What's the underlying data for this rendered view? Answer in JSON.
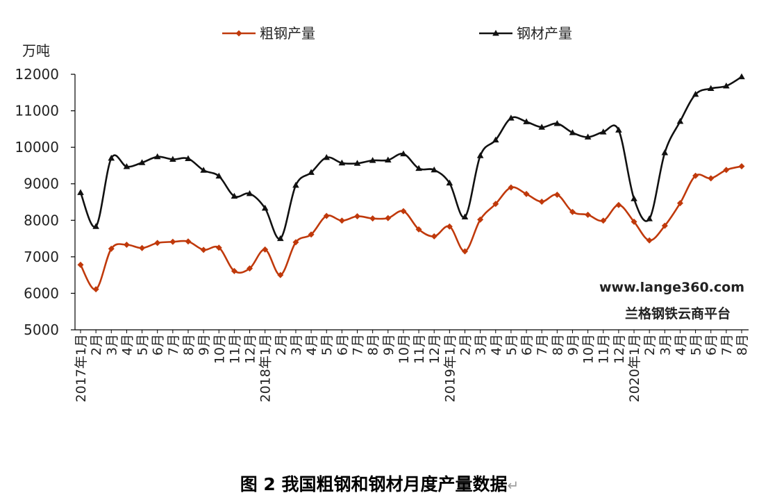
{
  "chart_data": {
    "type": "line",
    "ylabel": "万吨",
    "ylim": [
      5000,
      12000
    ],
    "yticks": [
      5000,
      6000,
      7000,
      8000,
      9000,
      10000,
      11000,
      12000
    ],
    "grid": false,
    "legend_position": "top",
    "categories": [
      "2017年1月",
      "2月",
      "3月",
      "4月",
      "5月",
      "6月",
      "7月",
      "8月",
      "9月",
      "10月",
      "11月",
      "12月",
      "2018年1月",
      "2月",
      "3月",
      "4月",
      "5月",
      "6月",
      "7月",
      "8月",
      "9月",
      "10月",
      "11月",
      "12月",
      "2019年1月",
      "2月",
      "3月",
      "4月",
      "5月",
      "6月",
      "7月",
      "8月",
      "9月",
      "10月",
      "11月",
      "12月",
      "2020年1月",
      "2月",
      "3月",
      "4月",
      "5月",
      "6月",
      "7月",
      "8月"
    ],
    "x_label_groups": [
      {
        "year": "2017年",
        "months": [
          "1月",
          "2月",
          "3月",
          "4月",
          "5月",
          "6月",
          "7月",
          "8月",
          "9月",
          "10月",
          "11月",
          "12月"
        ]
      },
      {
        "year": "2018年",
        "months": [
          "1月",
          "2月",
          "3月",
          "4月",
          "5月",
          "6月",
          "7月",
          "8月",
          "9月",
          "10月",
          "11月",
          "12月"
        ]
      },
      {
        "year": "2019年",
        "months": [
          "1月",
          "2月",
          "3月",
          "4月",
          "5月",
          "6月",
          "7月",
          "8月",
          "9月",
          "10月",
          "11月",
          "12月"
        ]
      },
      {
        "year": "2020年",
        "months": [
          "1月",
          "2月",
          "3月",
          "4月",
          "5月",
          "6月",
          "7月",
          "8月"
        ]
      }
    ],
    "series": [
      {
        "name": "粗钢产量",
        "color": "#c0390b",
        "marker": "diamond",
        "values": [
          6780,
          6110,
          7220,
          7330,
          7240,
          7380,
          7410,
          7420,
          7190,
          7250,
          6610,
          6680,
          7200,
          6500,
          7400,
          7610,
          8120,
          7990,
          8110,
          8050,
          8060,
          8250,
          7750,
          7560,
          7830,
          7150,
          8020,
          8450,
          8900,
          8720,
          8510,
          8700,
          8230,
          8150,
          7990,
          8420,
          7960,
          7450,
          7850,
          8470,
          9220,
          9150,
          9380,
          9480
        ]
      },
      {
        "name": "钢材产量",
        "color": "#111111",
        "marker": "triangle",
        "values": [
          8760,
          7830,
          9700,
          9470,
          9580,
          9740,
          9670,
          9690,
          9370,
          9210,
          8660,
          8730,
          8330,
          7500,
          8960,
          9310,
          9720,
          9570,
          9560,
          9640,
          9650,
          9820,
          9420,
          9380,
          9020,
          8090,
          9770,
          10200,
          10800,
          10700,
          10550,
          10650,
          10400,
          10280,
          10420,
          10470,
          8590,
          8040,
          9850,
          10710,
          11450,
          11610,
          11680,
          11930
        ]
      }
    ]
  },
  "watermark": {
    "url": "www.lange360.com",
    "name": "兰格钢铁云商平台"
  },
  "caption": {
    "text": "图 2  我国粗钢和钢材月度产量数据",
    "return_mark": "↵"
  }
}
